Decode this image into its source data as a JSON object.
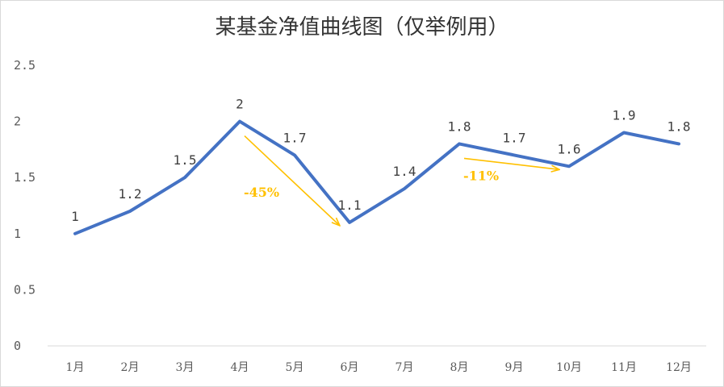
{
  "chart_data": {
    "type": "line",
    "title": "某基金净值曲线图（仅举例用）",
    "categories": [
      "1月",
      "2月",
      "3月",
      "4月",
      "5月",
      "6月",
      "7月",
      "8月",
      "9月",
      "10月",
      "11月",
      "12月"
    ],
    "series": [
      {
        "values": [
          1,
          1.2,
          1.5,
          2,
          1.7,
          1.1,
          1.4,
          1.8,
          1.7,
          1.6,
          1.9,
          1.8
        ]
      }
    ],
    "data_labels": [
      "1",
      "1.2",
      "1.5",
      "2",
      "1.7",
      "1.1",
      "1.4",
      "1.8",
      "1.7",
      "1.6",
      "1.9",
      "1.8"
    ],
    "ylim": [
      0,
      2.5
    ],
    "yticks": [
      0,
      0.5,
      1,
      1.5,
      2,
      2.5
    ],
    "ytick_labels": [
      "0",
      "0.5",
      "1",
      "1.5",
      "2",
      "2.5"
    ],
    "xlabel": "",
    "ylabel": "",
    "grid": false,
    "legend": "none",
    "colors": {
      "line": "#4472c4",
      "annotation": "#ffc000",
      "axis": "#d9d9d9"
    },
    "annotations": [
      {
        "text": "-45%",
        "from_index": 3,
        "to_index": 5
      },
      {
        "text": "-11%",
        "from_index": 7,
        "to_index": 9
      }
    ]
  }
}
